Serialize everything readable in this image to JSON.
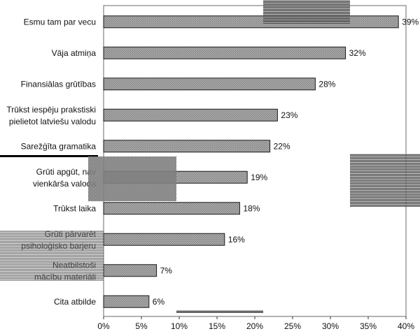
{
  "chart_data": {
    "type": "bar",
    "orientation": "horizontal",
    "categories": [
      "Esmu tam par vecu",
      "Vāja atmiņa",
      "Finansiālas grūtības",
      "Trūkst iespēju prakstiski pielietot latviešu valodu",
      "Sarežģīta gramatika",
      "Grūti apgūt, nav vienkārša valoda",
      "Trūkst laika",
      "Grūti pārvarēt psiholoģisko barjeru",
      "Neatbilstoši mācību materiāli",
      "Cita atbilde"
    ],
    "values": [
      39,
      32,
      28,
      23,
      22,
      19,
      18,
      16,
      7,
      6
    ],
    "value_labels": [
      "39%",
      "32%",
      "28%",
      "23%",
      "22%",
      "19%",
      "18%",
      "16%",
      "7%",
      "6%"
    ],
    "xlim": [
      0,
      40
    ],
    "x_ticks": [
      "0%",
      "5%",
      "10%",
      "15%",
      "20%",
      "25%",
      "30%",
      "35%",
      "40%"
    ],
    "bar_color": "#9a9a9a",
    "plot_background": "#ffffff",
    "grid": false,
    "legend": "none"
  }
}
